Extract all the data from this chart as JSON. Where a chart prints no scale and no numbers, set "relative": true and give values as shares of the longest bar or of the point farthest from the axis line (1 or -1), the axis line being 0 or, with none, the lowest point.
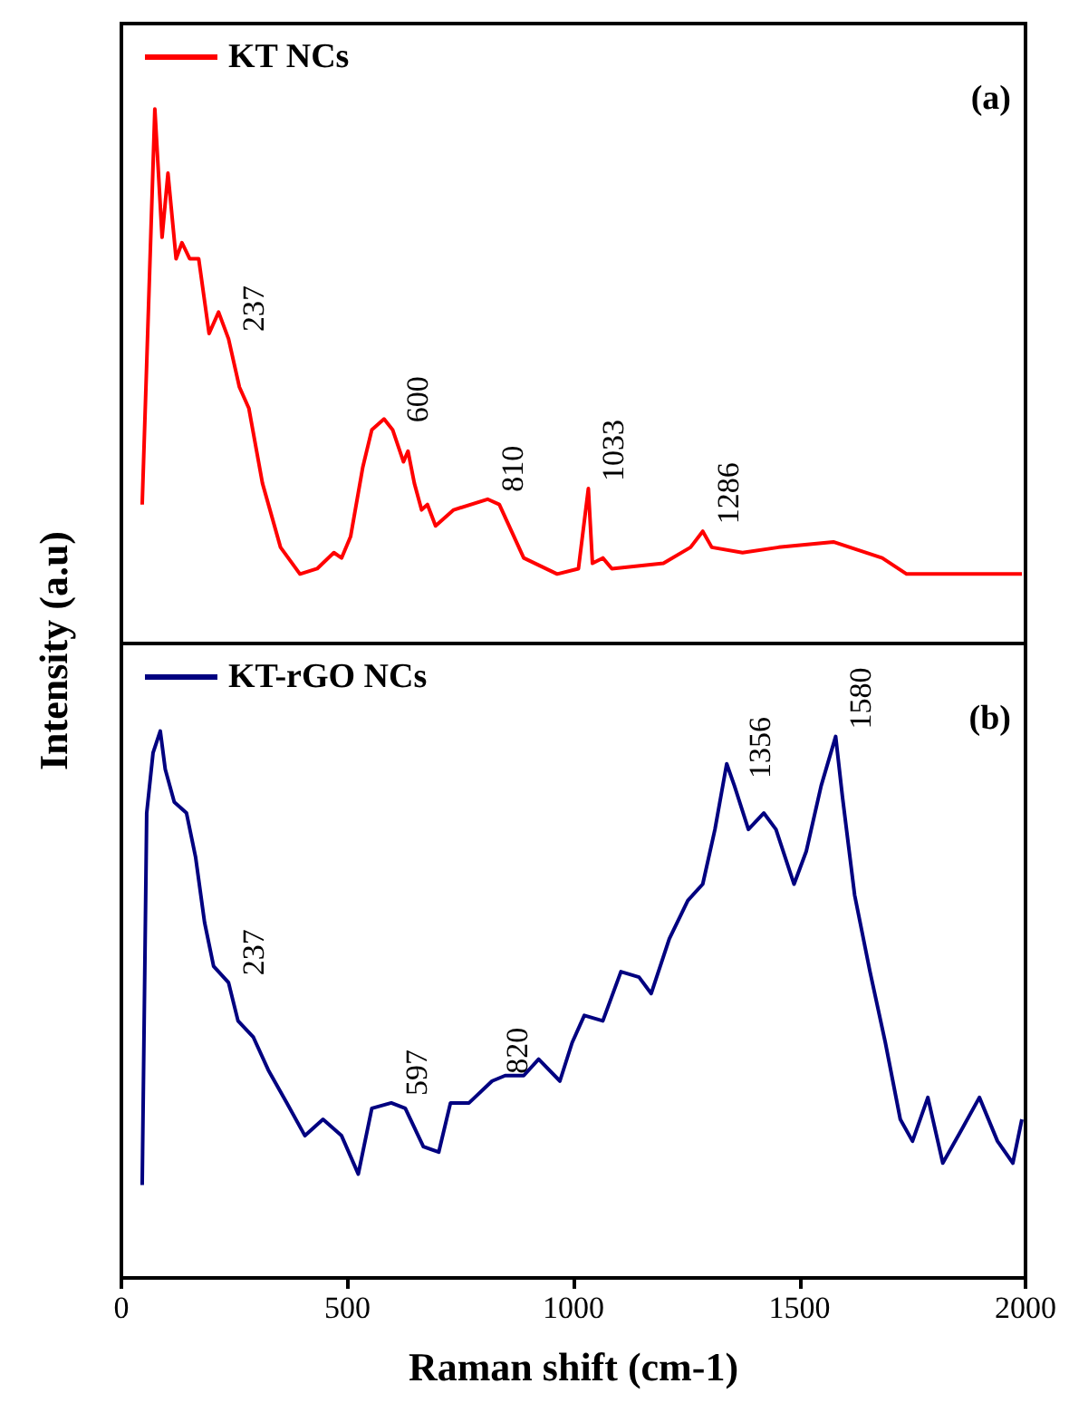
{
  "chart_data": [
    {
      "type": "line",
      "relative": true,
      "ylabel": "Intensity (a.u)",
      "legend": "top left",
      "grid": false,
      "tick_labels": false,
      "xlim": [
        0,
        2000
      ],
      "xticks": [
        0,
        500,
        1000,
        1500,
        2000
      ],
      "x": [
        46,
        74,
        90,
        103,
        121,
        134,
        151,
        171,
        194,
        215,
        237,
        261,
        282,
        312,
        352,
        395,
        433,
        470,
        487,
        507,
        534,
        554,
        581,
        600,
        624,
        634,
        648,
        664,
        677,
        695,
        735,
        810,
        836,
        890,
        964,
        1011,
        1033,
        1042,
        1065,
        1085,
        1199,
        1259,
        1286,
        1306,
        1374,
        1454,
        1575,
        1683,
        1737,
        1871,
        1992
      ],
      "series": [
        {
          "name": "KT NCs",
          "color": "#ff0000",
          "values": [
            0.26,
            1.0,
            0.76,
            0.88,
            0.72,
            0.75,
            0.72,
            0.72,
            0.58,
            0.62,
            0.57,
            0.48,
            0.44,
            0.3,
            0.18,
            0.13,
            0.14,
            0.17,
            0.16,
            0.2,
            0.33,
            0.4,
            0.42,
            0.4,
            0.34,
            0.36,
            0.3,
            0.25,
            0.26,
            0.22,
            0.25,
            0.27,
            0.26,
            0.16,
            0.13,
            0.14,
            0.29,
            0.15,
            0.16,
            0.14,
            0.15,
            0.18,
            0.21,
            0.18,
            0.17,
            0.18,
            0.19,
            0.16,
            0.13,
            0.13,
            0.13
          ]
        }
      ],
      "annotations": [
        "(a)",
        {
          "text": "237",
          "x": 237,
          "y": 0.57
        },
        {
          "text": "600",
          "x": 600,
          "y": 0.4
        },
        {
          "text": "810",
          "x": 810,
          "y": 0.27
        },
        {
          "text": "1033",
          "x": 1033,
          "y": 0.29
        },
        {
          "text": "1286",
          "x": 1286,
          "y": 0.21
        }
      ]
    },
    {
      "type": "line",
      "relative": true,
      "xlabel": "Raman shift (cm-1)",
      "legend": "top left",
      "grid": false,
      "tick_labels": "x",
      "xlim": [
        0,
        2000
      ],
      "xticks": [
        0,
        500,
        1000,
        1500,
        2000
      ],
      "x": [
        46,
        56,
        70,
        86,
        97,
        117,
        144,
        164,
        184,
        204,
        237,
        258,
        292,
        325,
        366,
        406,
        446,
        487,
        524,
        554,
        597,
        628,
        668,
        702,
        728,
        769,
        820,
        849,
        890,
        923,
        970,
        997,
        1024,
        1065,
        1105,
        1145,
        1172,
        1212,
        1253,
        1286,
        1313,
        1339,
        1356,
        1387,
        1421,
        1448,
        1488,
        1515,
        1548,
        1580,
        1595,
        1622,
        1656,
        1690,
        1723,
        1750,
        1784,
        1817,
        1858,
        1898,
        1938,
        1972,
        1992
      ],
      "series": [
        {
          "name": "KT-rGO NCs",
          "color": "#000080",
          "values": [
            0.17,
            0.85,
            0.96,
            1.0,
            0.93,
            0.87,
            0.85,
            0.77,
            0.65,
            0.57,
            0.54,
            0.47,
            0.44,
            0.38,
            0.32,
            0.26,
            0.29,
            0.26,
            0.19,
            0.31,
            0.32,
            0.31,
            0.24,
            0.23,
            0.32,
            0.32,
            0.36,
            0.37,
            0.37,
            0.4,
            0.36,
            0.43,
            0.48,
            0.47,
            0.56,
            0.55,
            0.52,
            0.62,
            0.69,
            0.72,
            0.82,
            0.94,
            0.9,
            0.82,
            0.85,
            0.82,
            0.72,
            0.78,
            0.9,
            0.99,
            0.88,
            0.7,
            0.56,
            0.43,
            0.29,
            0.25,
            0.33,
            0.21,
            0.27,
            0.33,
            0.25,
            0.21,
            0.29
          ]
        }
      ],
      "annotations": [
        "(b)",
        {
          "text": "237",
          "x": 237,
          "y": 0.54
        },
        {
          "text": "597",
          "x": 597,
          "y": 0.32
        },
        {
          "text": "820",
          "x": 820,
          "y": 0.36
        },
        {
          "text": "1356",
          "x": 1356,
          "y": 0.9
        },
        {
          "text": "1580",
          "x": 1580,
          "y": 0.99
        }
      ]
    }
  ]
}
